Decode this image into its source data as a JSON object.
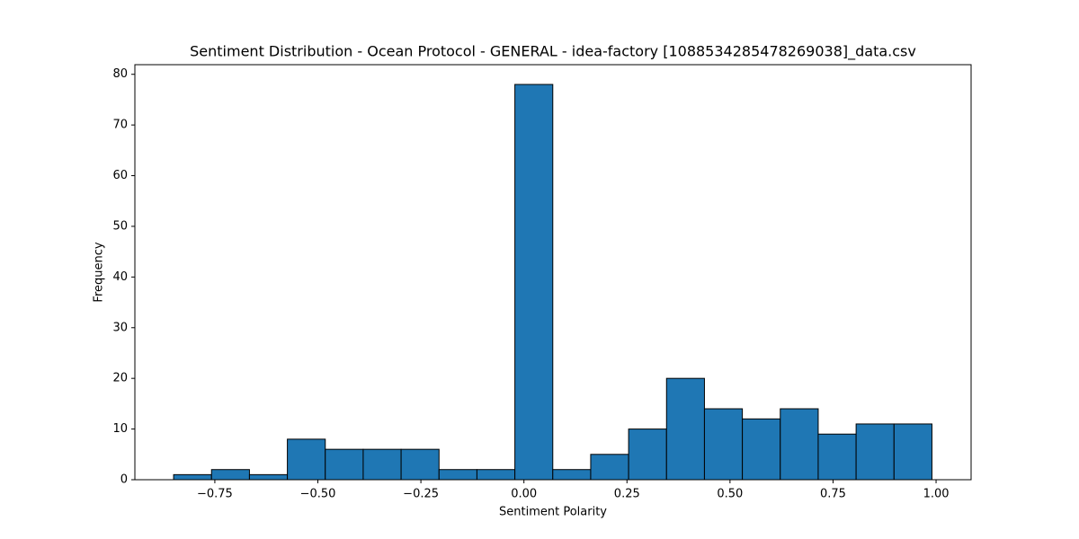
{
  "chart_data": {
    "type": "histogram",
    "title": "Sentiment Distribution - Ocean Protocol - GENERAL - idea-factory [1088534285478269038]_data.csv",
    "x_label": "Sentiment Polarity",
    "y_label": "Frequency",
    "bins": [
      -0.85,
      -0.758,
      -0.666,
      -0.574,
      -0.482,
      -0.39,
      -0.298,
      -0.206,
      -0.114,
      -0.022,
      0.07,
      0.162,
      0.254,
      0.346,
      0.438,
      0.53,
      0.622,
      0.714,
      0.806,
      0.898,
      0.99
    ],
    "values": [
      1,
      2,
      1,
      8,
      6,
      6,
      6,
      2,
      2,
      78,
      2,
      5,
      10,
      20,
      14,
      12,
      14,
      9,
      11,
      11
    ],
    "color": "#1f77b4",
    "edgecolor": "#000000",
    "xlim": [
      -0.944,
      1.085
    ],
    "ylim": [
      0,
      81.9
    ],
    "xticks": [
      {
        "value": -0.75,
        "label": "−0.75"
      },
      {
        "value": -0.5,
        "label": "−0.50"
      },
      {
        "value": -0.25,
        "label": "−0.25"
      },
      {
        "value": 0,
        "label": "0.00"
      },
      {
        "value": 0.25,
        "label": "0.25"
      },
      {
        "value": 0.5,
        "label": "0.50"
      },
      {
        "value": 0.75,
        "label": "0.75"
      },
      {
        "value": 1,
        "label": "1.00"
      }
    ],
    "yticks": [
      0,
      10,
      20,
      30,
      40,
      50,
      60,
      70,
      80
    ],
    "grid": false
  }
}
